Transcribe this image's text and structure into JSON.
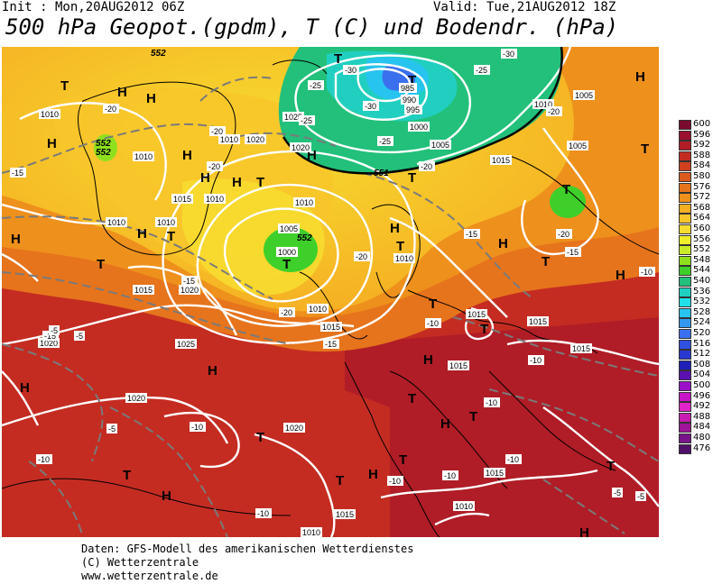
{
  "header": {
    "init": "Init : Mon,20AUG2012 06Z",
    "valid": "Valid: Tue,21AUG2012 18Z",
    "title": "500 hPa Geopot.(gpdm), T (C) und Bodendr. (hPa)"
  },
  "legend": {
    "levels": [
      "600",
      "596",
      "592",
      "588",
      "584",
      "580",
      "576",
      "572",
      "568",
      "564",
      "560",
      "556",
      "552",
      "548",
      "544",
      "540",
      "536",
      "532",
      "528",
      "524",
      "520",
      "516",
      "512",
      "508",
      "504",
      "500",
      "496",
      "492",
      "488",
      "484",
      "480",
      "476"
    ],
    "colors": [
      "#7a0a2e",
      "#9a1030",
      "#b01d27",
      "#c42c22",
      "#d0401f",
      "#dc5a1e",
      "#e6741c",
      "#ee901c",
      "#f5ad22",
      "#f8c62a",
      "#f7dc30",
      "#eeee2a",
      "#c8ec28",
      "#8fe01c",
      "#3fcf2a",
      "#22c07a",
      "#20cfc0",
      "#22e0e8",
      "#28c4f0",
      "#3598f0",
      "#3a70ee",
      "#3050e0",
      "#2838d0",
      "#2020b8",
      "#5a10b0",
      "#9a10c8",
      "#c814c8",
      "#e024c8",
      "#c81cb0",
      "#a0149a",
      "#781488",
      "#50106a"
    ]
  },
  "map_labels": {
    "highs": [
      "H",
      "H",
      "H",
      "H",
      "H",
      "H",
      "H",
      "H",
      "H",
      "H",
      "H",
      "H",
      "H",
      "H",
      "H",
      "H",
      "H",
      "H",
      "H",
      "H"
    ],
    "lows": [
      "T",
      "T",
      "T",
      "T",
      "T",
      "T",
      "T",
      "T",
      "T",
      "T",
      "T",
      "T",
      "T",
      "T",
      "T",
      "T",
      "T",
      "T",
      "T",
      "T",
      "T",
      "T"
    ],
    "isobars": [
      "1010",
      "1010",
      "1020",
      "1025",
      "1020",
      "1015",
      "1010",
      "1010",
      "1010",
      "1005",
      "1000",
      "1010",
      "1005",
      "1000",
      "990",
      "985",
      "995",
      "1010",
      "1005",
      "1015",
      "1005",
      "1010",
      "1015",
      "1015",
      "1010",
      "1015",
      "1020",
      "1015",
      "1020",
      "1025",
      "1020",
      "1015",
      "1015",
      "1015",
      "1015",
      "1010",
      "1010",
      "1020",
      "1010"
    ],
    "temps": [
      "-20",
      "-15",
      "-15",
      "-20",
      "-20",
      "-20",
      "-25",
      "-25",
      "-30",
      "-30",
      "-25",
      "-30",
      "-20",
      "-25",
      "-15",
      "-20",
      "-15",
      "-10",
      "-15",
      "-20",
      "-20",
      "-15",
      "-10",
      "-10",
      "-5",
      "-5",
      "-10",
      "-10",
      "-5",
      "-5",
      "-10",
      "-10",
      "-10",
      "-10",
      "-5",
      "-10"
    ],
    "geopot": [
      "552",
      "552",
      "552",
      "552",
      "551"
    ]
  },
  "footer": {
    "line1": "Daten: GFS-Modell des amerikanischen Wetterdienstes",
    "line2": "(C) Wetterzentrale",
    "line3": "www.wetterzentrale.de"
  }
}
